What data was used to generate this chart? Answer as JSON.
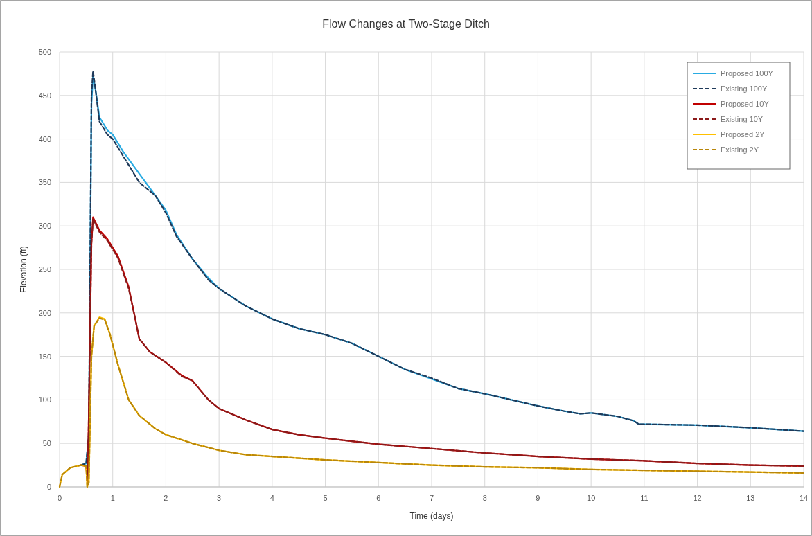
{
  "chart_data": {
    "type": "line",
    "title": "Flow Changes at Two-Stage Ditch",
    "xlabel": "Time (days)",
    "ylabel": "Elevation (ft)",
    "xlim": [
      0,
      14
    ],
    "xticks": [
      0,
      1,
      2,
      3,
      4,
      5,
      6,
      7,
      8,
      9,
      10,
      11,
      12,
      13,
      14
    ],
    "ylim": [
      0,
      500
    ],
    "yticks": [
      0,
      50,
      100,
      150,
      200,
      250,
      300,
      350,
      400,
      450,
      500
    ],
    "grid": true,
    "legend": "top right",
    "series": [
      {
        "name": "Proposed 100Y",
        "color": "#29abe2",
        "line_style": "solid",
        "x": [
          0.4,
          0.5,
          0.55,
          0.6,
          0.63,
          0.68,
          0.75,
          0.9,
          1,
          1.2,
          1.5,
          1.8,
          2,
          2.2,
          2.5,
          2.8,
          3,
          3.5,
          4,
          4.5,
          5,
          5.5,
          6,
          6.5,
          7,
          7.5,
          8,
          8.5,
          9,
          9.5,
          9.8,
          10,
          10.5,
          10.8,
          10.9,
          11,
          12,
          13,
          14
        ],
        "values": [
          25,
          27,
          60,
          440,
          472,
          455,
          425,
          410,
          405,
          385,
          360,
          335,
          318,
          290,
          262,
          240,
          228,
          208,
          193,
          182,
          175,
          165,
          150,
          135,
          124,
          113,
          107,
          100,
          93,
          87,
          84,
          85,
          81,
          76,
          72,
          72,
          71,
          68,
          64
        ]
      },
      {
        "name": "Existing 100Y",
        "color": "#1f3a5a",
        "line_style": "dashed",
        "x": [
          0.4,
          0.5,
          0.55,
          0.6,
          0.63,
          0.68,
          0.75,
          0.9,
          1,
          1.2,
          1.5,
          1.8,
          2,
          2.2,
          2.5,
          2.8,
          3,
          3.5,
          4,
          4.5,
          5,
          5.5,
          6,
          6.5,
          7,
          7.5,
          8,
          8.5,
          9,
          9.5,
          9.8,
          10,
          10.5,
          10.8,
          10.9,
          11,
          12,
          13,
          14
        ],
        "values": [
          25,
          27,
          60,
          450,
          478,
          455,
          420,
          405,
          400,
          380,
          350,
          335,
          315,
          288,
          262,
          238,
          228,
          208,
          193,
          182,
          175,
          165,
          150,
          135,
          125,
          113,
          107,
          100,
          93,
          87,
          84,
          85,
          81,
          76,
          72,
          72,
          71,
          68,
          64
        ]
      },
      {
        "name": "Proposed 10Y",
        "color": "#c00000",
        "line_style": "solid",
        "x": [
          0.4,
          0.5,
          0.53,
          0.6,
          0.63,
          0.75,
          0.9,
          1.1,
          1.3,
          1.4,
          1.5,
          1.7,
          2,
          2.3,
          2.5,
          2.8,
          3,
          3.5,
          4,
          4.5,
          5,
          6,
          7,
          8,
          9,
          10,
          11,
          12,
          13,
          14
        ],
        "values": [
          25,
          24,
          5,
          280,
          310,
          295,
          285,
          265,
          230,
          200,
          170,
          155,
          143,
          128,
          122,
          100,
          90,
          77,
          66,
          60,
          56,
          49,
          44,
          39,
          35,
          32,
          30,
          27,
          25,
          24
        ]
      },
      {
        "name": "Existing 10Y",
        "color": "#8b1a1a",
        "line_style": "dashed",
        "x": [
          0.5,
          0.53,
          0.6,
          0.63,
          0.75,
          0.9,
          1.1,
          1.3,
          1.4,
          1.5,
          1.7,
          2,
          2.3,
          2.5,
          2.8,
          3,
          3.5,
          4,
          4.5,
          5,
          6,
          7,
          8,
          9,
          10,
          11,
          12,
          13,
          14
        ],
        "values": [
          24,
          5,
          280,
          308,
          293,
          283,
          263,
          228,
          200,
          170,
          155,
          143,
          127,
          122,
          100,
          90,
          77,
          66,
          60,
          56,
          49,
          44,
          39,
          35,
          32,
          30,
          27,
          25,
          24
        ]
      },
      {
        "name": "Proposed 2Y",
        "color": "#ffc000",
        "line_style": "solid",
        "x": [
          0,
          0.05,
          0.2,
          0.4,
          0.5,
          0.52,
          0.55,
          0.6,
          0.65,
          0.75,
          0.85,
          0.95,
          1.1,
          1.3,
          1.5,
          1.8,
          2,
          2.5,
          3,
          3.5,
          4,
          5,
          6,
          7,
          8,
          9,
          10,
          11,
          12,
          13,
          14
        ],
        "values": [
          0,
          14,
          22,
          25,
          24,
          0,
          5,
          150,
          185,
          195,
          193,
          175,
          140,
          100,
          82,
          67,
          60,
          50,
          42,
          37,
          35,
          31,
          28,
          25,
          23,
          22,
          20,
          19,
          18,
          17,
          16
        ]
      },
      {
        "name": "Existing 2Y",
        "color": "#b8860b",
        "line_style": "dashed",
        "x": [
          0,
          0.05,
          0.2,
          0.4,
          0.5,
          0.52,
          0.55,
          0.6,
          0.65,
          0.75,
          0.85,
          0.95,
          1.1,
          1.3,
          1.5,
          1.8,
          2,
          2.5,
          3,
          3.5,
          4,
          5,
          6,
          7,
          8,
          9,
          10,
          11,
          12,
          13,
          14
        ],
        "values": [
          0,
          14,
          22,
          25,
          24,
          0,
          5,
          150,
          185,
          194,
          192,
          175,
          140,
          100,
          82,
          67,
          60,
          50,
          42,
          37,
          35,
          31,
          28,
          25,
          23,
          22,
          20,
          19,
          18,
          17,
          16
        ]
      }
    ]
  }
}
